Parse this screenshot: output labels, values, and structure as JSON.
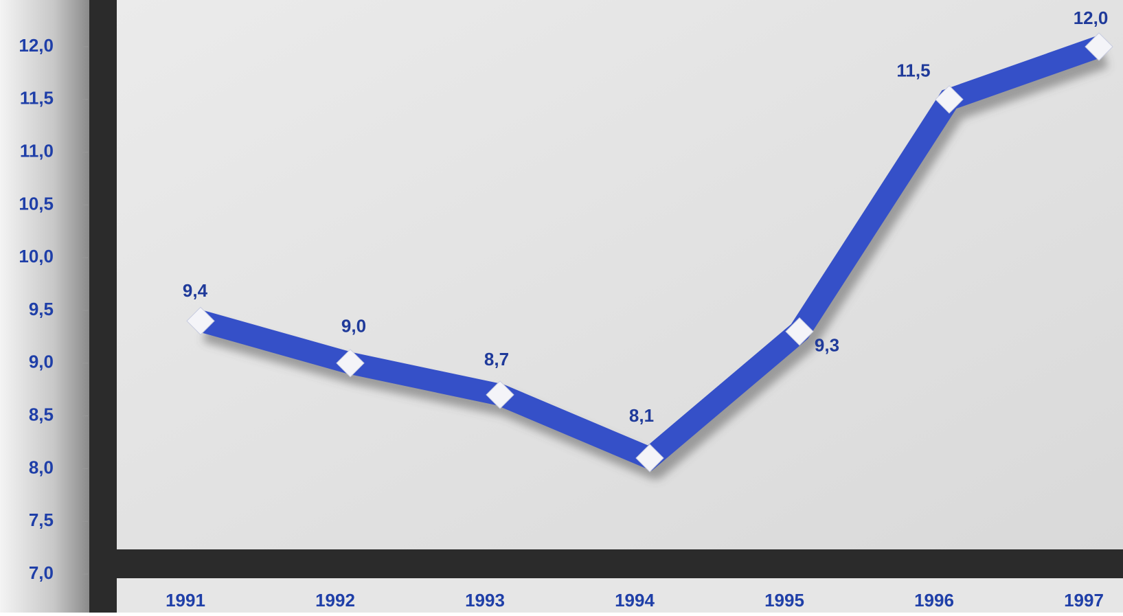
{
  "chart_data": {
    "type": "line",
    "categories": [
      "1991",
      "1992",
      "1993",
      "1994",
      "1995",
      "1996",
      "1997"
    ],
    "values": [
      9.4,
      9.0,
      8.7,
      8.1,
      9.3,
      11.5,
      12.0
    ],
    "value_labels": [
      "9,4",
      "9,0",
      "8,7",
      "8,1",
      "9,3",
      "11,5",
      "12,0"
    ],
    "color": "#3550c8",
    "ylim": [
      7,
      12
    ],
    "yticks": [
      {
        "value": 7,
        "label": "7,0"
      },
      {
        "value": 7.5,
        "label": "7,5"
      },
      {
        "value": 8,
        "label": "8,0"
      },
      {
        "value": 8.5,
        "label": "8,5"
      },
      {
        "value": 9,
        "label": "9,0"
      },
      {
        "value": 9.5,
        "label": "9,5"
      },
      {
        "value": 10,
        "label": "10,0"
      },
      {
        "value": 10.5,
        "label": "10,5"
      },
      {
        "value": 11,
        "label": "11,0"
      },
      {
        "value": 11.5,
        "label": "11,5"
      },
      {
        "value": 12,
        "label": "12,0"
      }
    ]
  }
}
